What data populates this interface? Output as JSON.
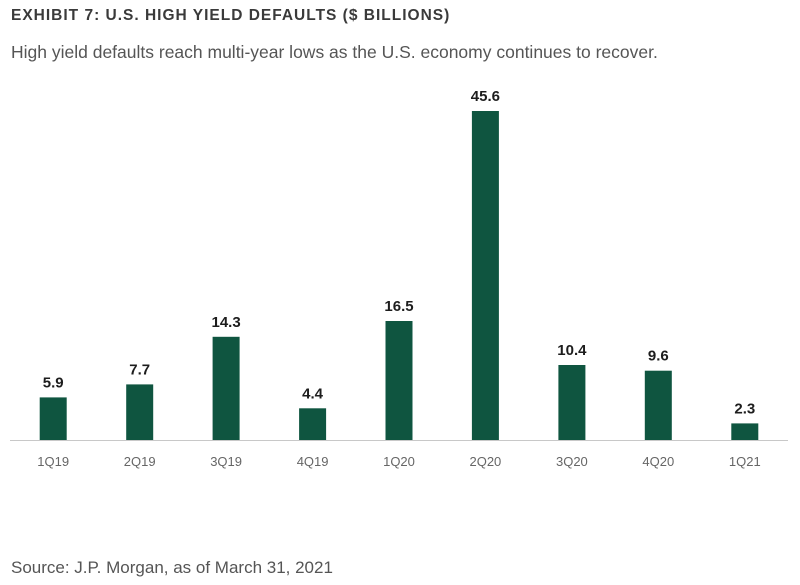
{
  "header": {
    "title": "EXHIBIT 7:  U.S. HIGH YIELD DEFAULTS ($ BILLIONS)",
    "subtitle": "High yield defaults reach multi-year lows as the U.S. economy continues to recover."
  },
  "chart_data": {
    "type": "bar",
    "categories": [
      "1Q19",
      "2Q19",
      "3Q19",
      "4Q19",
      "1Q20",
      "2Q20",
      "3Q20",
      "4Q20",
      "1Q21"
    ],
    "values": [
      5.9,
      7.7,
      14.3,
      4.4,
      16.5,
      45.6,
      10.4,
      9.6,
      2.3
    ],
    "value_labels": [
      "5.9",
      "7.7",
      "14.3",
      "4.4",
      "16.5",
      "45.6",
      "10.4",
      "9.6",
      "2.3"
    ],
    "ylim": [
      0,
      45.6
    ],
    "grid": false,
    "legend": "none",
    "colors": {
      "bar": "#0f5540",
      "axis": "#c8c8c8",
      "tick_label": "#666666",
      "value_label": "#1d1d1d"
    }
  },
  "footer": {
    "source": "Source: J.P. Morgan, as of March 31, 2021"
  }
}
